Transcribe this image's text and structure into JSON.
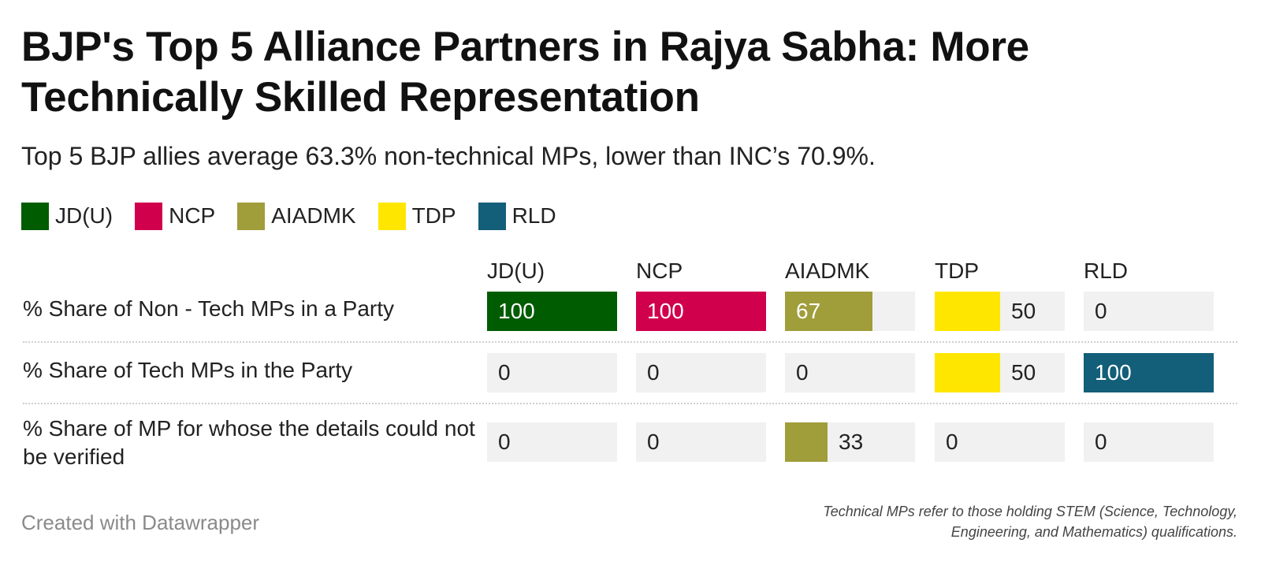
{
  "title": "BJP's Top 5 Alliance Partners in Rajya Sabha: More Technically Skilled Representation",
  "subtitle": "Top 5 BJP allies average 63.3% non-technical MPs, lower than INC’s 70.9%.",
  "legend": [
    {
      "label": "JD(U)",
      "color": "#005c00"
    },
    {
      "label": "NCP",
      "color": "#d1004d"
    },
    {
      "label": "AIADMK",
      "color": "#a09d3b"
    },
    {
      "label": "TDP",
      "color": "#ffe600"
    },
    {
      "label": "RLD",
      "color": "#135e78"
    }
  ],
  "chart_data": {
    "type": "table",
    "columns": [
      "JD(U)",
      "NCP",
      "AIADMK",
      "TDP",
      "RLD"
    ],
    "colors": [
      "#005c00",
      "#d1004d",
      "#a09d3b",
      "#ffe600",
      "#135e78"
    ],
    "max": 100,
    "rows": [
      {
        "label": "% Share of Non - Tech MPs in a Party",
        "values": [
          100,
          100,
          67,
          50,
          0
        ]
      },
      {
        "label": "% Share of Tech MPs in the Party",
        "values": [
          0,
          0,
          0,
          50,
          100
        ]
      },
      {
        "label": "% Share of MP for whose the details could not be verified",
        "values": [
          0,
          0,
          33,
          0,
          0
        ]
      }
    ]
  },
  "footer": {
    "credit": "Created with Datawrapper",
    "note": "Technical MPs refer to those holding STEM (Science, Technology, Engineering, and Mathematics) qualifications."
  }
}
